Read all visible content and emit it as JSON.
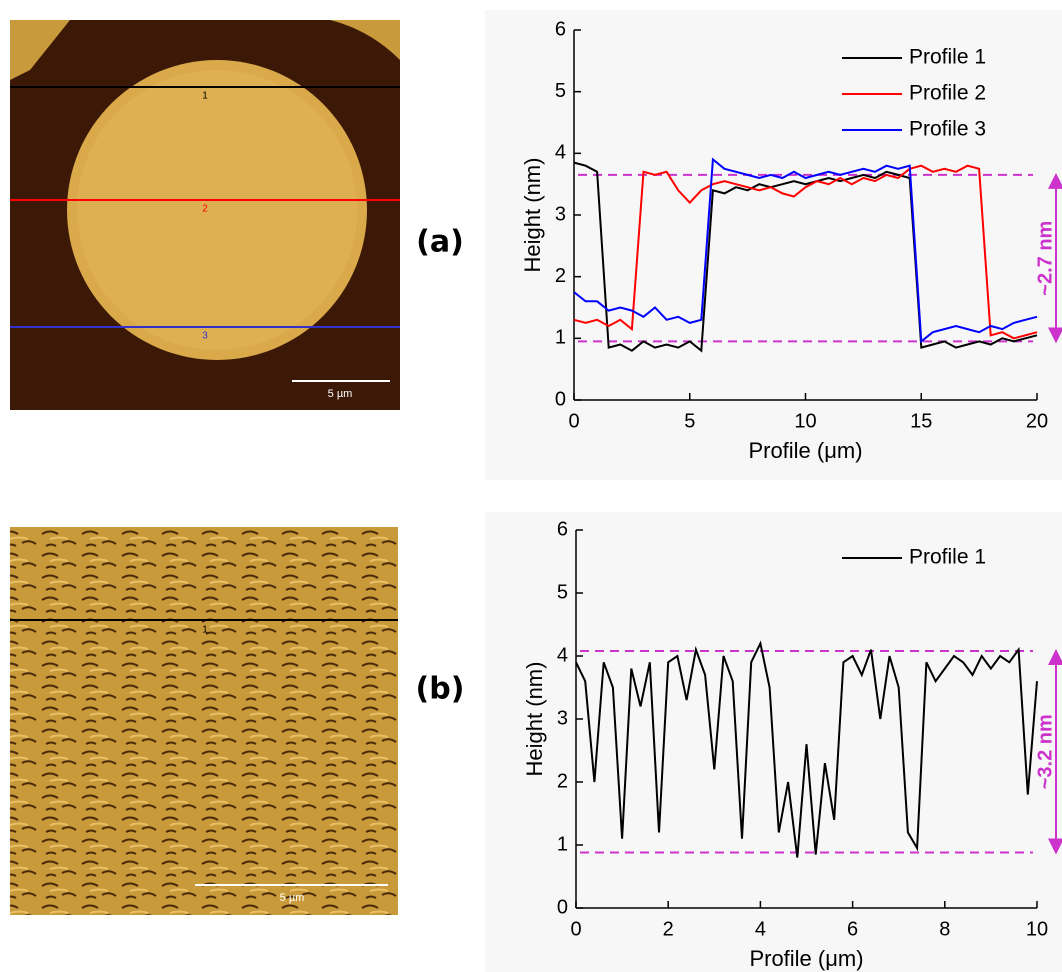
{
  "panels": [
    {
      "label": "(a)",
      "image_labels": [
        "1",
        "2",
        "3"
      ],
      "scale_bar": "5 µm"
    },
    {
      "label": "(b)",
      "image_labels": [
        "1"
      ],
      "scale_bar": "5 µm"
    }
  ],
  "chart_data": [
    {
      "type": "line",
      "xlabel": "Profile (μm)",
      "ylabel": "Height (nm)",
      "xlim": [
        0,
        20
      ],
      "xticks": [
        0,
        5,
        10,
        15,
        20
      ],
      "ylim": [
        0,
        6
      ],
      "yticks": [
        0,
        1,
        2,
        3,
        4,
        5,
        6
      ],
      "legend": "top-right",
      "x": [
        0,
        0.5,
        1,
        1.5,
        2,
        2.5,
        3,
        3.5,
        4,
        4.5,
        5,
        5.5,
        6,
        6.5,
        7,
        7.5,
        8,
        8.5,
        9,
        9.5,
        10,
        10.5,
        11,
        11.5,
        12,
        12.5,
        13,
        13.5,
        14,
        14.5,
        15,
        15.5,
        16,
        16.5,
        17,
        17.5,
        18,
        18.5,
        19,
        19.5,
        20
      ],
      "series": [
        {
          "name": "Profile 1",
          "color": "#000000",
          "values": [
            3.85,
            3.8,
            3.7,
            0.85,
            0.9,
            0.8,
            0.95,
            0.85,
            0.9,
            0.85,
            0.95,
            0.8,
            3.4,
            3.35,
            3.45,
            3.4,
            3.5,
            3.45,
            3.5,
            3.55,
            3.5,
            3.55,
            3.6,
            3.55,
            3.6,
            3.65,
            3.6,
            3.7,
            3.65,
            3.6,
            0.85,
            0.9,
            0.95,
            0.85,
            0.9,
            0.95,
            0.9,
            1.0,
            0.95,
            1.0,
            1.05
          ]
        },
        {
          "name": "Profile 2",
          "color": "#ff0000",
          "values": [
            1.3,
            1.25,
            1.3,
            1.2,
            1.3,
            1.15,
            3.7,
            3.65,
            3.7,
            3.4,
            3.2,
            3.4,
            3.5,
            3.55,
            3.5,
            3.45,
            3.4,
            3.45,
            3.35,
            3.3,
            3.45,
            3.55,
            3.5,
            3.6,
            3.5,
            3.6,
            3.55,
            3.65,
            3.6,
            3.75,
            3.8,
            3.7,
            3.75,
            3.7,
            3.8,
            3.75,
            1.05,
            1.1,
            1.0,
            1.05,
            1.1
          ]
        },
        {
          "name": "Profile 3",
          "color": "#0000ff",
          "values": [
            1.75,
            1.6,
            1.6,
            1.45,
            1.5,
            1.45,
            1.35,
            1.5,
            1.3,
            1.35,
            1.25,
            1.3,
            3.9,
            3.75,
            3.7,
            3.65,
            3.6,
            3.65,
            3.6,
            3.7,
            3.6,
            3.65,
            3.7,
            3.65,
            3.7,
            3.75,
            3.7,
            3.8,
            3.75,
            3.8,
            0.95,
            1.1,
            1.15,
            1.2,
            1.15,
            1.1,
            1.2,
            1.15,
            1.25,
            1.3,
            1.35
          ]
        }
      ],
      "hlines": [
        3.65,
        0.95
      ],
      "hline_color": "#cc33cc",
      "annotation": "~2.7 nm"
    },
    {
      "type": "line",
      "xlabel": "Profile (μm)",
      "ylabel": "Height (nm)",
      "xlim": [
        0,
        10
      ],
      "xticks": [
        0,
        2,
        4,
        6,
        8,
        10
      ],
      "ylim": [
        0,
        6
      ],
      "yticks": [
        0,
        1,
        2,
        3,
        4,
        5,
        6
      ],
      "legend": "top-right",
      "x": [
        0,
        0.2,
        0.4,
        0.6,
        0.8,
        1.0,
        1.2,
        1.4,
        1.6,
        1.8,
        2.0,
        2.2,
        2.4,
        2.6,
        2.8,
        3.0,
        3.2,
        3.4,
        3.6,
        3.8,
        4.0,
        4.2,
        4.4,
        4.6,
        4.8,
        5.0,
        5.2,
        5.4,
        5.6,
        5.8,
        6.0,
        6.2,
        6.4,
        6.6,
        6.8,
        7.0,
        7.2,
        7.4,
        7.6,
        7.8,
        8.0,
        8.2,
        8.4,
        8.6,
        8.8,
        9.0,
        9.2,
        9.4,
        9.6,
        9.8,
        10.0
      ],
      "series": [
        {
          "name": "Profile 1",
          "color": "#000000",
          "values": [
            3.9,
            3.6,
            2.0,
            3.9,
            3.5,
            1.1,
            3.8,
            3.2,
            3.9,
            1.2,
            3.9,
            4.0,
            3.3,
            4.1,
            3.7,
            2.2,
            4.0,
            3.6,
            1.1,
            3.9,
            4.2,
            3.5,
            1.2,
            2.0,
            0.8,
            2.6,
            0.85,
            2.3,
            1.4,
            3.9,
            4.0,
            3.7,
            4.1,
            3.0,
            4.0,
            3.5,
            1.2,
            0.95,
            3.9,
            3.6,
            3.8,
            4.0,
            3.9,
            3.7,
            4.0,
            3.8,
            4.0,
            3.9,
            4.1,
            1.8,
            3.6
          ]
        }
      ],
      "hlines": [
        4.08,
        0.88
      ],
      "hline_color": "#cc33cc",
      "annotation": "~3.2 nm"
    }
  ]
}
